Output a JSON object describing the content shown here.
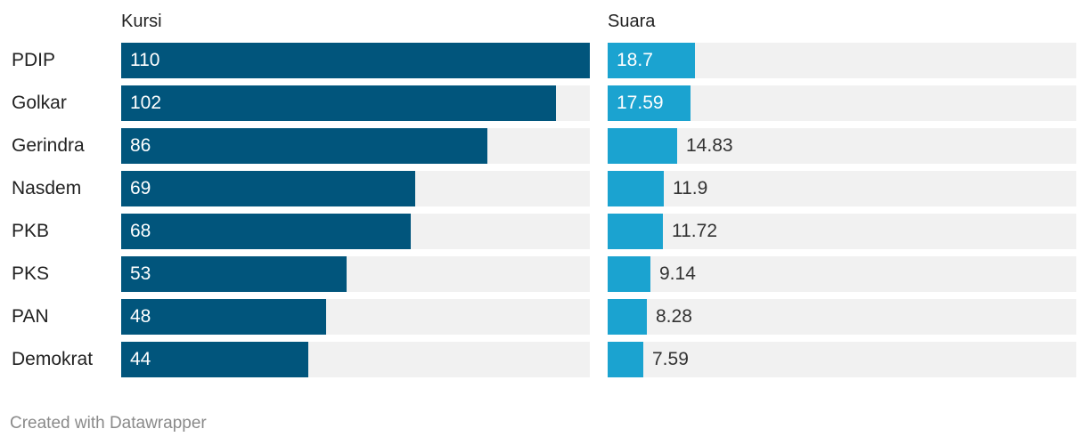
{
  "chart_data": {
    "type": "bar",
    "categories": [
      "PDIP",
      "Golkar",
      "Gerindra",
      "Nasdem",
      "PKB",
      "PKS",
      "PAN",
      "Demokrat"
    ],
    "series": [
      {
        "name": "Kursi",
        "values": [
          110,
          102,
          86,
          69,
          68,
          53,
          48,
          44
        ],
        "color": "#01557c",
        "xlim": [
          0,
          110
        ]
      },
      {
        "name": "Suara",
        "values": [
          18.7,
          17.59,
          14.83,
          11.9,
          11.72,
          9.14,
          8.28,
          7.59
        ],
        "color": "#1ba3d0",
        "xlim": [
          0,
          100
        ]
      }
    ],
    "value_labels": {
      "Kursi": [
        "110",
        "102",
        "86",
        "69",
        "68",
        "53",
        "48",
        "44"
      ],
      "Suara": [
        "18.7",
        "17.59",
        "14.83",
        "11.9",
        "11.72",
        "9.14",
        "8.28",
        "7.59"
      ]
    },
    "orientation": "horizontal",
    "track_color": "#f1f1f1",
    "grid": false,
    "legend": "none"
  },
  "footer": {
    "credit": "Created with Datawrapper"
  }
}
